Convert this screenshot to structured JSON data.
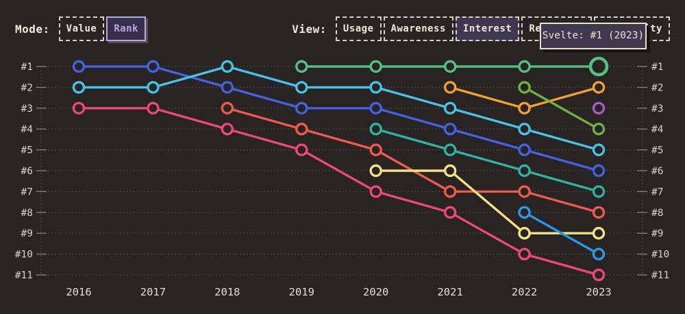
{
  "header": {
    "mode": {
      "label": "Mode:",
      "options": [
        {
          "label": "Value",
          "selected": false
        },
        {
          "label": "Rank",
          "selected": true
        }
      ]
    },
    "view": {
      "label": "View:",
      "options": [
        {
          "label": "Usage",
          "selected": false
        },
        {
          "label": "Awareness",
          "selected": false
        },
        {
          "label": "Interest",
          "selected": true
        },
        {
          "label": "Retention",
          "selected": false
        },
        {
          "label": "Positivity",
          "selected": false
        }
      ]
    }
  },
  "tooltip": {
    "text": "Svelte: #1 (2023)"
  },
  "colors": {
    "background": "#292423",
    "cream_text": "#e6decb",
    "axis_label": "#d9d1c0",
    "grid": "#4d4743",
    "tick": "#8a8377",
    "selected_purple": "#b7a9ec",
    "tooltip_bg": "#3f3950",
    "tooltip_border": "#e9e0cb"
  },
  "chart_data": {
    "type": "line",
    "subtype": "bump-rank-chart",
    "title": "",
    "xlabel": "",
    "ylabel": "",
    "x": [
      2016,
      2017,
      2018,
      2019,
      2020,
      2021,
      2022,
      2023
    ],
    "rank_labels": [
      "#1",
      "#2",
      "#3",
      "#4",
      "#5",
      "#6",
      "#7",
      "#8",
      "#9",
      "#10",
      "#11"
    ],
    "grid": "dotted",
    "legend_position": "none",
    "hovered_point": {
      "series": "Svelte",
      "year": 2023,
      "rank": 1,
      "tooltip": "Svelte: #1 (2023)"
    },
    "series": [
      {
        "name": "series-blue",
        "color": "#4562e0",
        "ranks": [
          1,
          1,
          2,
          3,
          3,
          4,
          5,
          6
        ]
      },
      {
        "name": "series-cyan",
        "color": "#46c3e6",
        "ranks": [
          2,
          2,
          1,
          2,
          2,
          3,
          4,
          5
        ]
      },
      {
        "name": "series-pink",
        "color": "#ec4979",
        "ranks": [
          3,
          3,
          4,
          5,
          7,
          8,
          10,
          11
        ]
      },
      {
        "name": "series-tomato",
        "color": "#ee5a4d",
        "ranks": [
          null,
          null,
          3,
          4,
          5,
          7,
          7,
          8
        ]
      },
      {
        "name": "Svelte",
        "color": "#55c17e",
        "ranks": [
          null,
          null,
          null,
          1,
          1,
          1,
          1,
          1
        ]
      },
      {
        "name": "series-teal",
        "color": "#2fb3a3",
        "ranks": [
          null,
          null,
          null,
          null,
          4,
          5,
          6,
          7
        ]
      },
      {
        "name": "series-yellow",
        "color": "#f2e288",
        "ranks": [
          null,
          null,
          null,
          null,
          6,
          6,
          9,
          9
        ]
      },
      {
        "name": "series-orange",
        "color": "#f0a12e",
        "ranks": [
          null,
          null,
          null,
          null,
          null,
          2,
          3,
          2
        ]
      },
      {
        "name": "series-green",
        "color": "#6cb33f",
        "ranks": [
          null,
          null,
          null,
          null,
          null,
          null,
          2,
          4
        ]
      },
      {
        "name": "series-lightblue",
        "color": "#2c99e8",
        "ranks": [
          null,
          null,
          null,
          null,
          null,
          null,
          8,
          10
        ]
      },
      {
        "name": "series-purple",
        "color": "#a35ec6",
        "ranks": [
          null,
          null,
          null,
          null,
          null,
          null,
          null,
          3
        ]
      }
    ]
  }
}
